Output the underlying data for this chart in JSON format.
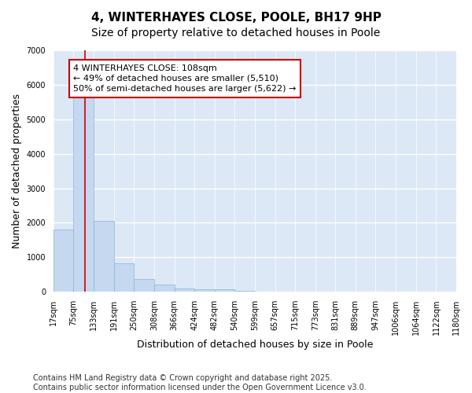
{
  "title": "4, WINTERHAYES CLOSE, POOLE, BH17 9HP",
  "subtitle": "Size of property relative to detached houses in Poole",
  "xlabel": "Distribution of detached houses by size in Poole",
  "ylabel": "Number of detached properties",
  "bar_values": [
    1800,
    5800,
    2050,
    820,
    360,
    220,
    100,
    70,
    70,
    30,
    10,
    5,
    5,
    3,
    3,
    2,
    2,
    1,
    1,
    1
  ],
  "bin_edges": [
    17,
    75,
    133,
    191,
    250,
    308,
    366,
    424,
    482,
    540,
    599,
    657,
    715,
    773,
    831,
    889,
    947,
    1006,
    1064,
    1122,
    1180
  ],
  "tick_labels": [
    "17sqm",
    "75sqm",
    "133sqm",
    "191sqm",
    "250sqm",
    "308sqm",
    "366sqm",
    "424sqm",
    "482sqm",
    "540sqm",
    "599sqm",
    "657sqm",
    "715sqm",
    "773sqm",
    "831sqm",
    "889sqm",
    "947sqm",
    "1006sqm",
    "1064sqm",
    "1122sqm",
    "1180sqm"
  ],
  "bar_color": "#c5d8f0",
  "bar_edge_color": "#8ab4d8",
  "plot_bg_color": "#dce8f5",
  "fig_bg_color": "#ffffff",
  "grid_color": "#ffffff",
  "vline_x": 108,
  "vline_color": "#cc0000",
  "annotation_text": "4 WINTERHAYES CLOSE: 108sqm\n← 49% of detached houses are smaller (5,510)\n50% of semi-detached houses are larger (5,622) →",
  "annotation_box_color": "#ffffff",
  "annotation_box_edge": "#cc0000",
  "ylim": [
    0,
    7000
  ],
  "yticks": [
    0,
    1000,
    2000,
    3000,
    4000,
    5000,
    6000,
    7000
  ],
  "footer": "Contains HM Land Registry data © Crown copyright and database right 2025.\nContains public sector information licensed under the Open Government Licence v3.0.",
  "title_fontsize": 11,
  "subtitle_fontsize": 10,
  "axis_label_fontsize": 9,
  "tick_fontsize": 7,
  "annotation_fontsize": 8,
  "footer_fontsize": 7
}
